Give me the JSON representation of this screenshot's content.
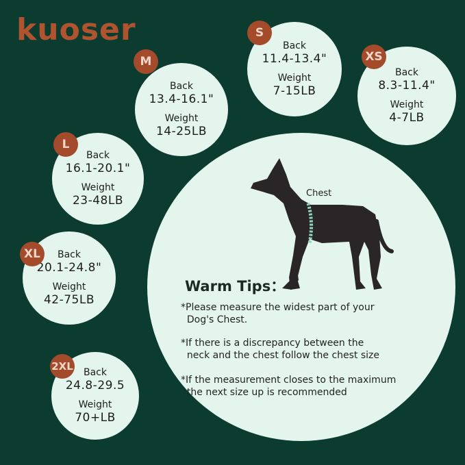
{
  "brand": {
    "logo": "kuoser",
    "color": "#b0542f"
  },
  "colors": {
    "background": "#0c3b30",
    "circle": "#e4f5ee",
    "badge": "#a34b2b"
  },
  "back_label": "Back",
  "weight_label": "Weight",
  "sizes": [
    {
      "size": "M",
      "back": "13.4-16.1\"",
      "weight": "14-25LB"
    },
    {
      "size": "S",
      "back": "11.4-13.4\"",
      "weight": "7-15LB"
    },
    {
      "size": "XS",
      "back": "8.3-11.4\"",
      "weight": "4-7LB"
    },
    {
      "size": "L",
      "back": "16.1-20.1\"",
      "weight": "23-48LB"
    },
    {
      "size": "XL",
      "back": "20.1-24.8\"",
      "weight": "42-75LB"
    },
    {
      "size": "2XL",
      "back": "24.8-29.5",
      "weight": "70+LB"
    }
  ],
  "diagram": {
    "chest_label": "Chest",
    "icon": "dog-silhouette-icon"
  },
  "tips": {
    "title": "Warm Tips：",
    "items": [
      "*Please measure the widest part of your\n  Dog's Chest.",
      "*If there is a discrepancy between the\n  neck and the chest follow the chest size",
      "*If the measurement closes to the maximum\n  the next size up is recommended"
    ]
  }
}
